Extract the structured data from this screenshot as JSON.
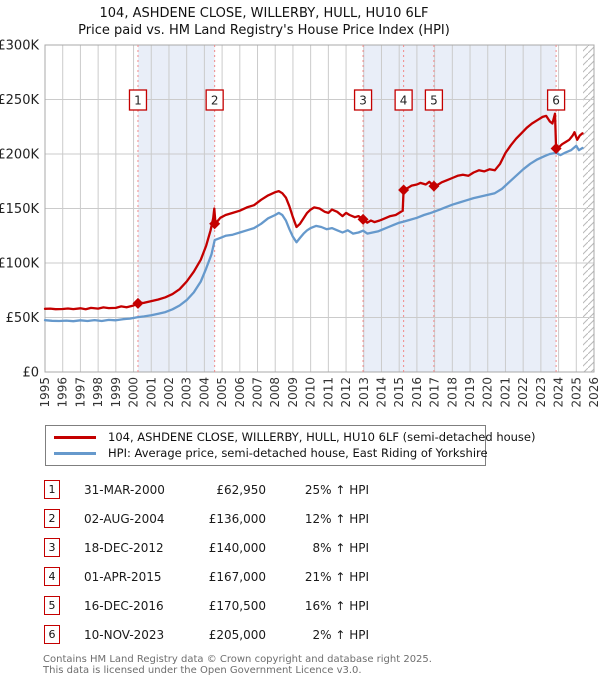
{
  "title": {
    "line1": "104, ASHDENE CLOSE, WILLERBY, HULL, HU10 6LF",
    "line2": "Price paid vs. HM Land Registry's House Price Index (HPI)"
  },
  "colors": {
    "property_line": "#c40000",
    "hpi_line": "#6699cc",
    "sale_dash": "#f08a8a",
    "band": "#e9eef8",
    "grid": "#cbcbcb",
    "plot_border": "#a8a8a8",
    "hatch": "#b9b9b9",
    "marker_box_border": "#c40000",
    "tick_text": "#333333"
  },
  "chart_data": {
    "type": "line",
    "title": "Price paid vs. HM Land Registry's House Price Index (HPI)",
    "x_axis": {
      "min": 1995,
      "max": 2026,
      "tick_labels": [
        "1995",
        "1996",
        "1997",
        "1998",
        "1999",
        "2000",
        "2001",
        "2002",
        "2003",
        "2004",
        "2005",
        "2006",
        "2007",
        "2008",
        "2009",
        "2010",
        "2011",
        "2012",
        "2013",
        "2014",
        "2015",
        "2016",
        "2017",
        "2018",
        "2019",
        "2020",
        "2021",
        "2022",
        "2023",
        "2024",
        "2025",
        "2026"
      ]
    },
    "y_axis": {
      "min": 0,
      "max": 300,
      "tick_values": [
        300,
        250,
        200,
        150,
        100,
        50,
        0
      ],
      "tick_labels": [
        "£300K",
        "£250K",
        "£200K",
        "£150K",
        "£100K",
        "£50K",
        "£0"
      ],
      "unit": "GBP thousands"
    },
    "shaded_bands": [
      [
        2000.25,
        2004.58
      ],
      [
        2012.96,
        2023.86
      ]
    ],
    "hatch_band": [
      2025.38,
      2026
    ],
    "series": [
      {
        "name": "104, ASHDENE CLOSE, WILLERBY, HULL, HU10 6LF (semi-detached house)",
        "color_key": "property_line",
        "points": [
          [
            1995.0,
            58
          ],
          [
            1995.3,
            58.2
          ],
          [
            1995.6,
            57.6
          ],
          [
            1996.0,
            57.8
          ],
          [
            1996.3,
            58.3
          ],
          [
            1996.6,
            57.7
          ],
          [
            1997.0,
            58.4
          ],
          [
            1997.3,
            57.6
          ],
          [
            1997.6,
            58.8
          ],
          [
            1998.0,
            58.2
          ],
          [
            1998.3,
            59.3
          ],
          [
            1998.6,
            58.6
          ],
          [
            1999.0,
            58.8
          ],
          [
            1999.3,
            60.2
          ],
          [
            1999.6,
            59.4
          ],
          [
            2000.0,
            61
          ],
          [
            2000.25,
            62.95
          ],
          [
            2000.6,
            63.5
          ],
          [
            2001.0,
            65
          ],
          [
            2001.4,
            66.5
          ],
          [
            2001.8,
            68.5
          ],
          [
            2002.2,
            71.5
          ],
          [
            2002.6,
            76
          ],
          [
            2003.0,
            83
          ],
          [
            2003.4,
            92
          ],
          [
            2003.8,
            103
          ],
          [
            2004.1,
            116
          ],
          [
            2004.35,
            130
          ],
          [
            2004.5,
            141
          ],
          [
            2004.56,
            150
          ],
          [
            2004.62,
            137
          ],
          [
            2004.75,
            138.5
          ],
          [
            2004.9,
            141.5
          ],
          [
            2005.2,
            144
          ],
          [
            2005.6,
            146
          ],
          [
            2006.0,
            148
          ],
          [
            2006.4,
            151
          ],
          [
            2006.8,
            153
          ],
          [
            2007.2,
            158
          ],
          [
            2007.6,
            162
          ],
          [
            2008.0,
            165
          ],
          [
            2008.2,
            166
          ],
          [
            2008.4,
            164
          ],
          [
            2008.6,
            160
          ],
          [
            2008.8,
            152
          ],
          [
            2009.0,
            142
          ],
          [
            2009.2,
            133
          ],
          [
            2009.4,
            136
          ],
          [
            2009.6,
            141
          ],
          [
            2009.8,
            146
          ],
          [
            2010.0,
            149
          ],
          [
            2010.2,
            151
          ],
          [
            2010.5,
            150
          ],
          [
            2010.8,
            147
          ],
          [
            2011.0,
            146
          ],
          [
            2011.2,
            149
          ],
          [
            2011.5,
            147
          ],
          [
            2011.8,
            143
          ],
          [
            2012.0,
            146
          ],
          [
            2012.2,
            144
          ],
          [
            2012.5,
            142
          ],
          [
            2012.7,
            143
          ],
          [
            2012.96,
            140
          ],
          [
            2013.2,
            137
          ],
          [
            2013.4,
            139
          ],
          [
            2013.6,
            137.5
          ],
          [
            2013.9,
            139
          ],
          [
            2014.2,
            141
          ],
          [
            2014.5,
            143
          ],
          [
            2014.8,
            144
          ],
          [
            2015.0,
            146
          ],
          [
            2015.2,
            148
          ],
          [
            2015.25,
            167
          ],
          [
            2015.5,
            169
          ],
          [
            2015.7,
            171
          ],
          [
            2016.0,
            172
          ],
          [
            2016.2,
            173.5
          ],
          [
            2016.5,
            172
          ],
          [
            2016.7,
            174.5
          ],
          [
            2016.96,
            170.5
          ],
          [
            2017.2,
            172
          ],
          [
            2017.4,
            174
          ],
          [
            2017.7,
            176
          ],
          [
            2018.0,
            178
          ],
          [
            2018.3,
            180
          ],
          [
            2018.6,
            181
          ],
          [
            2018.9,
            180
          ],
          [
            2019.2,
            183
          ],
          [
            2019.5,
            185
          ],
          [
            2019.8,
            184
          ],
          [
            2020.1,
            186
          ],
          [
            2020.4,
            185
          ],
          [
            2020.7,
            191
          ],
          [
            2021.0,
            201
          ],
          [
            2021.3,
            208
          ],
          [
            2021.6,
            214
          ],
          [
            2021.9,
            219
          ],
          [
            2022.2,
            224
          ],
          [
            2022.5,
            228
          ],
          [
            2022.8,
            231
          ],
          [
            2023.1,
            234
          ],
          [
            2023.3,
            235
          ],
          [
            2023.5,
            230
          ],
          [
            2023.65,
            228
          ],
          [
            2023.8,
            237
          ],
          [
            2023.86,
            205
          ],
          [
            2024.0,
            206
          ],
          [
            2024.2,
            209
          ],
          [
            2024.4,
            211
          ],
          [
            2024.6,
            213
          ],
          [
            2024.8,
            217
          ],
          [
            2024.9,
            220
          ],
          [
            2025.05,
            213
          ],
          [
            2025.2,
            217
          ],
          [
            2025.35,
            219
          ]
        ]
      },
      {
        "name": "HPI: Average price, semi-detached house, East Riding of Yorkshire",
        "color_key": "hpi_line",
        "points": [
          [
            1995.0,
            47.5
          ],
          [
            1995.4,
            47
          ],
          [
            1995.8,
            46.8
          ],
          [
            1996.2,
            47.2
          ],
          [
            1996.6,
            46.6
          ],
          [
            1997.0,
            47.4
          ],
          [
            1997.4,
            46.8
          ],
          [
            1997.8,
            47.6
          ],
          [
            1998.2,
            46.8
          ],
          [
            1998.6,
            47.8
          ],
          [
            1999.0,
            47.4
          ],
          [
            1999.4,
            48.4
          ],
          [
            1999.8,
            49
          ],
          [
            2000.25,
            50.4
          ],
          [
            2000.6,
            51
          ],
          [
            2001.0,
            52
          ],
          [
            2001.4,
            53.5
          ],
          [
            2001.8,
            55
          ],
          [
            2002.2,
            57.5
          ],
          [
            2002.6,
            61
          ],
          [
            2003.0,
            66
          ],
          [
            2003.4,
            73
          ],
          [
            2003.8,
            83
          ],
          [
            2004.1,
            95
          ],
          [
            2004.4,
            108
          ],
          [
            2004.58,
            121
          ],
          [
            2004.9,
            123
          ],
          [
            2005.2,
            125
          ],
          [
            2005.6,
            126
          ],
          [
            2006.0,
            128
          ],
          [
            2006.4,
            130
          ],
          [
            2006.8,
            132
          ],
          [
            2007.2,
            136
          ],
          [
            2007.6,
            141
          ],
          [
            2008.0,
            144
          ],
          [
            2008.2,
            146
          ],
          [
            2008.4,
            144
          ],
          [
            2008.6,
            139
          ],
          [
            2008.8,
            131
          ],
          [
            2009.0,
            124
          ],
          [
            2009.2,
            119
          ],
          [
            2009.4,
            123
          ],
          [
            2009.6,
            127
          ],
          [
            2009.8,
            130
          ],
          [
            2010.0,
            132
          ],
          [
            2010.3,
            134
          ],
          [
            2010.6,
            133
          ],
          [
            2010.9,
            131
          ],
          [
            2011.2,
            132
          ],
          [
            2011.5,
            130
          ],
          [
            2011.8,
            128
          ],
          [
            2012.1,
            130
          ],
          [
            2012.4,
            127
          ],
          [
            2012.7,
            128
          ],
          [
            2012.96,
            129.6
          ],
          [
            2013.2,
            127
          ],
          [
            2013.5,
            128
          ],
          [
            2013.8,
            129
          ],
          [
            2014.1,
            131
          ],
          [
            2014.4,
            133
          ],
          [
            2014.7,
            135
          ],
          [
            2015.0,
            137
          ],
          [
            2015.25,
            138
          ],
          [
            2015.6,
            139.5
          ],
          [
            2016.0,
            141.5
          ],
          [
            2016.4,
            144
          ],
          [
            2016.7,
            145.5
          ],
          [
            2016.96,
            147
          ],
          [
            2017.3,
            149
          ],
          [
            2017.6,
            151
          ],
          [
            2018.0,
            153.5
          ],
          [
            2018.4,
            155.5
          ],
          [
            2018.8,
            157.5
          ],
          [
            2019.2,
            159.5
          ],
          [
            2019.6,
            161
          ],
          [
            2020.0,
            162.5
          ],
          [
            2020.4,
            164
          ],
          [
            2020.8,
            168
          ],
          [
            2021.2,
            174
          ],
          [
            2021.6,
            180
          ],
          [
            2022.0,
            186
          ],
          [
            2022.4,
            191
          ],
          [
            2022.8,
            195
          ],
          [
            2023.2,
            198
          ],
          [
            2023.5,
            200
          ],
          [
            2023.86,
            201
          ],
          [
            2024.1,
            199
          ],
          [
            2024.4,
            201.5
          ],
          [
            2024.7,
            203.5
          ],
          [
            2025.0,
            207.5
          ],
          [
            2025.15,
            203.5
          ],
          [
            2025.35,
            205.5
          ]
        ]
      }
    ],
    "sales": [
      {
        "num": "1",
        "year": 2000.25,
        "price_k": 62.95,
        "date": "31-MAR-2000",
        "price": "£62,950",
        "hpi": "25% ↑ HPI"
      },
      {
        "num": "2",
        "year": 2004.58,
        "price_k": 136,
        "date": "02-AUG-2004",
        "price": "£136,000",
        "hpi": "12% ↑ HPI"
      },
      {
        "num": "3",
        "year": 2012.96,
        "price_k": 140,
        "date": "18-DEC-2012",
        "price": "£140,000",
        "hpi": "8% ↑ HPI"
      },
      {
        "num": "4",
        "year": 2015.25,
        "price_k": 167,
        "date": "01-APR-2015",
        "price": "£167,000",
        "hpi": "21% ↑ HPI"
      },
      {
        "num": "5",
        "year": 2016.96,
        "price_k": 170.5,
        "date": "16-DEC-2016",
        "price": "£170,500",
        "hpi": "16% ↑ HPI"
      },
      {
        "num": "6",
        "year": 2023.86,
        "price_k": 205,
        "date": "10-NOV-2023",
        "price": "£205,000",
        "hpi": "2% ↑ HPI"
      }
    ]
  },
  "legend": [
    {
      "label": "104, ASHDENE CLOSE, WILLERBY, HULL, HU10 6LF (semi-detached house)",
      "color_key": "property_line"
    },
    {
      "label": "HPI: Average price, semi-detached house, East Riding of Yorkshire",
      "color_key": "hpi_line"
    }
  ],
  "footer": {
    "line1": "Contains HM Land Registry data © Crown copyright and database right 2025.",
    "line2": "This data is licensed under the Open Government Licence v3.0."
  }
}
